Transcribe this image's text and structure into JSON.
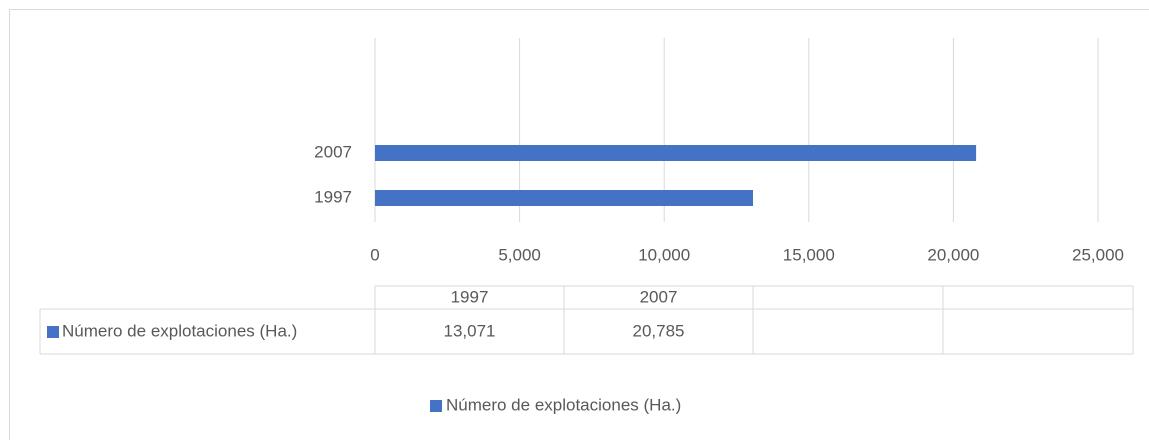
{
  "chart_data": {
    "type": "bar",
    "orientation": "horizontal",
    "categories": [
      "1997",
      "2007"
    ],
    "series": [
      {
        "name": "Número de explotaciones (Ha.)",
        "color": "#4472c4",
        "values": [
          13071,
          20785
        ],
        "value_labels": [
          "13,071",
          "20,785"
        ]
      }
    ],
    "xlim": [
      0,
      25000
    ],
    "xticks": [
      0,
      {
        "value": 5000,
        "label": "5,000"
      },
      {
        "value": 10000,
        "label": "10,000"
      },
      {
        "value": 15000,
        "label": "15,000"
      },
      {
        "value": 20000,
        "label": "20,000"
      },
      {
        "value": 25000,
        "label": "25,000"
      }
    ],
    "grid": true,
    "legend": "bottom",
    "data_table": true
  }
}
